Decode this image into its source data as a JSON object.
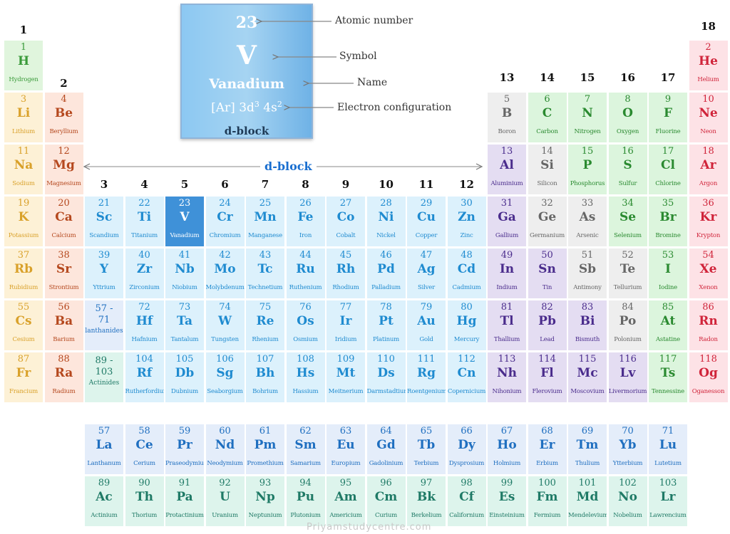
{
  "legend": {
    "number": "23",
    "symbol": "V",
    "name": "Vanadium",
    "config_base": "[Ar] 3d",
    "config_sup1": "3",
    "config_mid": " 4s",
    "config_sup2": "2",
    "block": "d-block",
    "labels": {
      "number": "Atomic number",
      "symbol": "Symbol",
      "name": "Name",
      "config": "Electron configuration"
    }
  },
  "block_label": "d-block",
  "watermark": "Priyamstudycentre.com",
  "group_labels": [
    "1",
    "2",
    "3",
    "4",
    "5",
    "6",
    "7",
    "8",
    "9",
    "10",
    "11",
    "12",
    "13",
    "14",
    "15",
    "16",
    "17",
    "18"
  ],
  "lanthanide_range": {
    "top": "57 -",
    "bottom": "71",
    "label": "lanthanides"
  },
  "actinide_range": {
    "top": "89 -",
    "bottom": "103",
    "label": "Actinides"
  },
  "highlight": "V",
  "colors": {
    "alkali": {
      "bg": "#fdf1d6",
      "fg": "#d9a12a"
    },
    "alkaline": {
      "bg": "#fde6dc",
      "fg": "#b5481e"
    },
    "hydrogen": {
      "bg": "#e0f5dd",
      "fg": "#3a9a3a"
    },
    "transition": {
      "bg": "#dcf1fc",
      "fg": "#1f8bd0"
    },
    "postmetal": {
      "bg": "#e4ddf2",
      "fg": "#4a2c8c"
    },
    "metalloid": {
      "bg": "#eeeeee",
      "fg": "#666666"
    },
    "nonmetal": {
      "bg": "#dcf5dd",
      "fg": "#2a8a30"
    },
    "noble": {
      "bg": "#fde2e6",
      "fg": "#d0243a"
    },
    "lanthanide": {
      "bg": "#e4edfa",
      "fg": "#1f6fc0"
    },
    "actinide": {
      "bg": "#ddf4ec",
      "fg": "#1f7a66"
    },
    "selected": {
      "bg": "#3f91d8",
      "fg": "#ffffff"
    }
  },
  "elements": [
    {
      "n": "1",
      "s": "H",
      "name": "Hydrogen",
      "row": 0,
      "col": 0,
      "cat": "hydrogen"
    },
    {
      "n": "2",
      "s": "He",
      "name": "Helium",
      "row": 0,
      "col": 17,
      "cat": "noble"
    },
    {
      "n": "3",
      "s": "Li",
      "name": "Lithium",
      "row": 1,
      "col": 0,
      "cat": "alkali"
    },
    {
      "n": "4",
      "s": "Be",
      "name": "Beryllium",
      "row": 1,
      "col": 1,
      "cat": "alkaline"
    },
    {
      "n": "5",
      "s": "B",
      "name": "Boron",
      "row": 1,
      "col": 12,
      "cat": "metalloid"
    },
    {
      "n": "6",
      "s": "C",
      "name": "Carbon",
      "row": 1,
      "col": 13,
      "cat": "nonmetal"
    },
    {
      "n": "7",
      "s": "N",
      "name": "Nitrogen",
      "row": 1,
      "col": 14,
      "cat": "nonmetal"
    },
    {
      "n": "8",
      "s": "O",
      "name": "Oxygen",
      "row": 1,
      "col": 15,
      "cat": "nonmetal"
    },
    {
      "n": "9",
      "s": "F",
      "name": "Fluorine",
      "row": 1,
      "col": 16,
      "cat": "nonmetal"
    },
    {
      "n": "10",
      "s": "Ne",
      "name": "Neon",
      "row": 1,
      "col": 17,
      "cat": "noble"
    },
    {
      "n": "11",
      "s": "Na",
      "name": "Sodium",
      "row": 2,
      "col": 0,
      "cat": "alkali"
    },
    {
      "n": "12",
      "s": "Mg",
      "name": "Magnesium",
      "row": 2,
      "col": 1,
      "cat": "alkaline"
    },
    {
      "n": "13",
      "s": "Al",
      "name": "Aluminium",
      "row": 2,
      "col": 12,
      "cat": "postmetal"
    },
    {
      "n": "14",
      "s": "Si",
      "name": "Silicon",
      "row": 2,
      "col": 13,
      "cat": "metalloid"
    },
    {
      "n": "15",
      "s": "P",
      "name": "Phosphorus",
      "row": 2,
      "col": 14,
      "cat": "nonmetal"
    },
    {
      "n": "16",
      "s": "S",
      "name": "Sulfur",
      "row": 2,
      "col": 15,
      "cat": "nonmetal"
    },
    {
      "n": "17",
      "s": "Cl",
      "name": "Chlorine",
      "row": 2,
      "col": 16,
      "cat": "nonmetal"
    },
    {
      "n": "18",
      "s": "Ar",
      "name": "Argon",
      "row": 2,
      "col": 17,
      "cat": "noble"
    },
    {
      "n": "19",
      "s": "K",
      "name": "Potassium",
      "row": 3,
      "col": 0,
      "cat": "alkali"
    },
    {
      "n": "20",
      "s": "Ca",
      "name": "Calcium",
      "row": 3,
      "col": 1,
      "cat": "alkaline"
    },
    {
      "n": "21",
      "s": "Sc",
      "name": "Scandium",
      "row": 3,
      "col": 2,
      "cat": "transition"
    },
    {
      "n": "22",
      "s": "Ti",
      "name": "Titanium",
      "row": 3,
      "col": 3,
      "cat": "transition"
    },
    {
      "n": "23",
      "s": "V",
      "name": "Vanadium",
      "row": 3,
      "col": 4,
      "cat": "selected"
    },
    {
      "n": "24",
      "s": "Cr",
      "name": "Chromium",
      "row": 3,
      "col": 5,
      "cat": "transition"
    },
    {
      "n": "25",
      "s": "Mn",
      "name": "Manganese",
      "row": 3,
      "col": 6,
      "cat": "transition"
    },
    {
      "n": "26",
      "s": "Fe",
      "name": "Iron",
      "row": 3,
      "col": 7,
      "cat": "transition"
    },
    {
      "n": "27",
      "s": "Co",
      "name": "Cobalt",
      "row": 3,
      "col": 8,
      "cat": "transition"
    },
    {
      "n": "28",
      "s": "Ni",
      "name": "Nickel",
      "row": 3,
      "col": 9,
      "cat": "transition"
    },
    {
      "n": "29",
      "s": "Cu",
      "name": "Copper",
      "row": 3,
      "col": 10,
      "cat": "transition"
    },
    {
      "n": "30",
      "s": "Zn",
      "name": "Zinc",
      "row": 3,
      "col": 11,
      "cat": "transition"
    },
    {
      "n": "31",
      "s": "Ga",
      "name": "Gallium",
      "row": 3,
      "col": 12,
      "cat": "postmetal"
    },
    {
      "n": "32",
      "s": "Ge",
      "name": "Germanium",
      "row": 3,
      "col": 13,
      "cat": "metalloid"
    },
    {
      "n": "33",
      "s": "As",
      "name": "Arsenic",
      "row": 3,
      "col": 14,
      "cat": "metalloid"
    },
    {
      "n": "34",
      "s": "Se",
      "name": "Selenium",
      "row": 3,
      "col": 15,
      "cat": "nonmetal"
    },
    {
      "n": "35",
      "s": "Br",
      "name": "Bromine",
      "row": 3,
      "col": 16,
      "cat": "nonmetal"
    },
    {
      "n": "36",
      "s": "Kr",
      "name": "Krypton",
      "row": 3,
      "col": 17,
      "cat": "noble"
    },
    {
      "n": "37",
      "s": "Rb",
      "name": "Rubidium",
      "row": 4,
      "col": 0,
      "cat": "alkali"
    },
    {
      "n": "38",
      "s": "Sr",
      "name": "Strontium",
      "row": 4,
      "col": 1,
      "cat": "alkaline"
    },
    {
      "n": "39",
      "s": "Y",
      "name": "Yttrium",
      "row": 4,
      "col": 2,
      "cat": "transition"
    },
    {
      "n": "40",
      "s": "Zr",
      "name": "Zirconium",
      "row": 4,
      "col": 3,
      "cat": "transition"
    },
    {
      "n": "41",
      "s": "Nb",
      "name": "Niobium",
      "row": 4,
      "col": 4,
      "cat": "transition"
    },
    {
      "n": "42",
      "s": "Mo",
      "name": "Molybdenum",
      "row": 4,
      "col": 5,
      "cat": "transition"
    },
    {
      "n": "43",
      "s": "Tc",
      "name": "Technetium",
      "row": 4,
      "col": 6,
      "cat": "transition"
    },
    {
      "n": "44",
      "s": "Ru",
      "name": "Ruthenium",
      "row": 4,
      "col": 7,
      "cat": "transition"
    },
    {
      "n": "45",
      "s": "Rh",
      "name": "Rhodium",
      "row": 4,
      "col": 8,
      "cat": "transition"
    },
    {
      "n": "46",
      "s": "Pd",
      "name": "Palladium",
      "row": 4,
      "col": 9,
      "cat": "transition"
    },
    {
      "n": "47",
      "s": "Ag",
      "name": "Silver",
      "row": 4,
      "col": 10,
      "cat": "transition"
    },
    {
      "n": "48",
      "s": "Cd",
      "name": "Cadmium",
      "row": 4,
      "col": 11,
      "cat": "transition"
    },
    {
      "n": "49",
      "s": "In",
      "name": "Indium",
      "row": 4,
      "col": 12,
      "cat": "postmetal"
    },
    {
      "n": "50",
      "s": "Sn",
      "name": "Tin",
      "row": 4,
      "col": 13,
      "cat": "postmetal"
    },
    {
      "n": "51",
      "s": "Sb",
      "name": "Antimony",
      "row": 4,
      "col": 14,
      "cat": "metalloid"
    },
    {
      "n": "52",
      "s": "Te",
      "name": "Tellurium",
      "row": 4,
      "col": 15,
      "cat": "metalloid"
    },
    {
      "n": "53",
      "s": "I",
      "name": "Iodine",
      "row": 4,
      "col": 16,
      "cat": "nonmetal"
    },
    {
      "n": "54",
      "s": "Xe",
      "name": "Xenon",
      "row": 4,
      "col": 17,
      "cat": "noble"
    },
    {
      "n": "55",
      "s": "Cs",
      "name": "Cesium",
      "row": 5,
      "col": 0,
      "cat": "alkali"
    },
    {
      "n": "56",
      "s": "Ba",
      "name": "Barium",
      "row": 5,
      "col": 1,
      "cat": "alkaline"
    },
    {
      "n": "72",
      "s": "Hf",
      "name": "Hafnium",
      "row": 5,
      "col": 3,
      "cat": "transition"
    },
    {
      "n": "73",
      "s": "Ta",
      "name": "Tantalum",
      "row": 5,
      "col": 4,
      "cat": "transition"
    },
    {
      "n": "74",
      "s": "W",
      "name": "Tungsten",
      "row": 5,
      "col": 5,
      "cat": "transition"
    },
    {
      "n": "75",
      "s": "Re",
      "name": "Rhenium",
      "row": 5,
      "col": 6,
      "cat": "transition"
    },
    {
      "n": "76",
      "s": "Os",
      "name": "Osmium",
      "row": 5,
      "col": 7,
      "cat": "transition"
    },
    {
      "n": "77",
      "s": "Ir",
      "name": "Iridium",
      "row": 5,
      "col": 8,
      "cat": "transition"
    },
    {
      "n": "78",
      "s": "Pt",
      "name": "Platinum",
      "row": 5,
      "col": 9,
      "cat": "transition"
    },
    {
      "n": "79",
      "s": "Au",
      "name": "Gold",
      "row": 5,
      "col": 10,
      "cat": "transition"
    },
    {
      "n": "80",
      "s": "Hg",
      "name": "Mercury",
      "row": 5,
      "col": 11,
      "cat": "transition"
    },
    {
      "n": "81",
      "s": "Tl",
      "name": "Thallium",
      "row": 5,
      "col": 12,
      "cat": "postmetal"
    },
    {
      "n": "82",
      "s": "Pb",
      "name": "Lead",
      "row": 5,
      "col": 13,
      "cat": "postmetal"
    },
    {
      "n": "83",
      "s": "Bi",
      "name": "Bismuth",
      "row": 5,
      "col": 14,
      "cat": "postmetal"
    },
    {
      "n": "84",
      "s": "Po",
      "name": "Polonium",
      "row": 5,
      "col": 15,
      "cat": "metalloid"
    },
    {
      "n": "85",
      "s": "At",
      "name": "Astatine",
      "row": 5,
      "col": 16,
      "cat": "nonmetal"
    },
    {
      "n": "86",
      "s": "Rn",
      "name": "Radon",
      "row": 5,
      "col": 17,
      "cat": "noble"
    },
    {
      "n": "87",
      "s": "Fr",
      "name": "Francium",
      "row": 6,
      "col": 0,
      "cat": "alkali"
    },
    {
      "n": "88",
      "s": "Ra",
      "name": "Radium",
      "row": 6,
      "col": 1,
      "cat": "alkaline"
    },
    {
      "n": "104",
      "s": "Rf",
      "name": "Rutherfordium",
      "row": 6,
      "col": 3,
      "cat": "transition"
    },
    {
      "n": "105",
      "s": "Db",
      "name": "Dubnium",
      "row": 6,
      "col": 4,
      "cat": "transition"
    },
    {
      "n": "106",
      "s": "Sg",
      "name": "Seaborgium",
      "row": 6,
      "col": 5,
      "cat": "transition"
    },
    {
      "n": "107",
      "s": "Bh",
      "name": "Bohrium",
      "row": 6,
      "col": 6,
      "cat": "transition"
    },
    {
      "n": "108",
      "s": "Hs",
      "name": "Hassium",
      "row": 6,
      "col": 7,
      "cat": "transition"
    },
    {
      "n": "109",
      "s": "Mt",
      "name": "Meitnerium",
      "row": 6,
      "col": 8,
      "cat": "transition"
    },
    {
      "n": "110",
      "s": "Ds",
      "name": "Darmstadtium",
      "row": 6,
      "col": 9,
      "cat": "transition"
    },
    {
      "n": "111",
      "s": "Rg",
      "name": "Roentgenium",
      "row": 6,
      "col": 10,
      "cat": "transition"
    },
    {
      "n": "112",
      "s": "Cn",
      "name": "Copernicium",
      "row": 6,
      "col": 11,
      "cat": "transition"
    },
    {
      "n": "113",
      "s": "Nh",
      "name": "Nihonium",
      "row": 6,
      "col": 12,
      "cat": "postmetal"
    },
    {
      "n": "114",
      "s": "Fl",
      "name": "Flerovium",
      "row": 6,
      "col": 13,
      "cat": "postmetal"
    },
    {
      "n": "115",
      "s": "Mc",
      "name": "Moscovium",
      "row": 6,
      "col": 14,
      "cat": "postmetal"
    },
    {
      "n": "116",
      "s": "Lv",
      "name": "Livermorium",
      "row": 6,
      "col": 15,
      "cat": "postmetal"
    },
    {
      "n": "117",
      "s": "Ts",
      "name": "Tennessine",
      "row": 6,
      "col": 16,
      "cat": "nonmetal"
    },
    {
      "n": "118",
      "s": "Og",
      "name": "Oganesson",
      "row": 6,
      "col": 17,
      "cat": "noble"
    }
  ],
  "lanthanides": [
    {
      "n": "57",
      "s": "La",
      "name": "Lanthanum"
    },
    {
      "n": "58",
      "s": "Ce",
      "name": "Cerium"
    },
    {
      "n": "59",
      "s": "Pr",
      "name": "Praseodymium"
    },
    {
      "n": "60",
      "s": "Nd",
      "name": "Neodymium"
    },
    {
      "n": "61",
      "s": "Pm",
      "name": "Promethium"
    },
    {
      "n": "62",
      "s": "Sm",
      "name": "Samarium"
    },
    {
      "n": "63",
      "s": "Eu",
      "name": "Europium"
    },
    {
      "n": "64",
      "s": "Gd",
      "name": "Gadolinium"
    },
    {
      "n": "65",
      "s": "Tb",
      "name": "Terbium"
    },
    {
      "n": "66",
      "s": "Dy",
      "name": "Dysprosium"
    },
    {
      "n": "67",
      "s": "Ho",
      "name": "Holmium"
    },
    {
      "n": "68",
      "s": "Er",
      "name": "Erbium"
    },
    {
      "n": "69",
      "s": "Tm",
      "name": "Thulium"
    },
    {
      "n": "70",
      "s": "Yb",
      "name": "Ytterbium"
    },
    {
      "n": "71",
      "s": "Lu",
      "name": "Lutetium"
    }
  ],
  "actinides": [
    {
      "n": "89",
      "s": "Ac",
      "name": "Actinium"
    },
    {
      "n": "90",
      "s": "Th",
      "name": "Thorium"
    },
    {
      "n": "91",
      "s": "Pa",
      "name": "Protactinium"
    },
    {
      "n": "92",
      "s": "U",
      "name": "Uranium"
    },
    {
      "n": "93",
      "s": "Np",
      "name": "Neptunium"
    },
    {
      "n": "94",
      "s": "Pu",
      "name": "Plutonium"
    },
    {
      "n": "95",
      "s": "Am",
      "name": "Americium"
    },
    {
      "n": "96",
      "s": "Cm",
      "name": "Curium"
    },
    {
      "n": "97",
      "s": "Bk",
      "name": "Berkelium"
    },
    {
      "n": "98",
      "s": "Cf",
      "name": "Californium"
    },
    {
      "n": "99",
      "s": "Es",
      "name": "Einsteinium"
    },
    {
      "n": "100",
      "s": "Fm",
      "name": "Fermium"
    },
    {
      "n": "101",
      "s": "Md",
      "name": "Mendelevium"
    },
    {
      "n": "102",
      "s": "No",
      "name": "Nobelium"
    },
    {
      "n": "103",
      "s": "Lr",
      "name": "Lawrencium"
    }
  ]
}
